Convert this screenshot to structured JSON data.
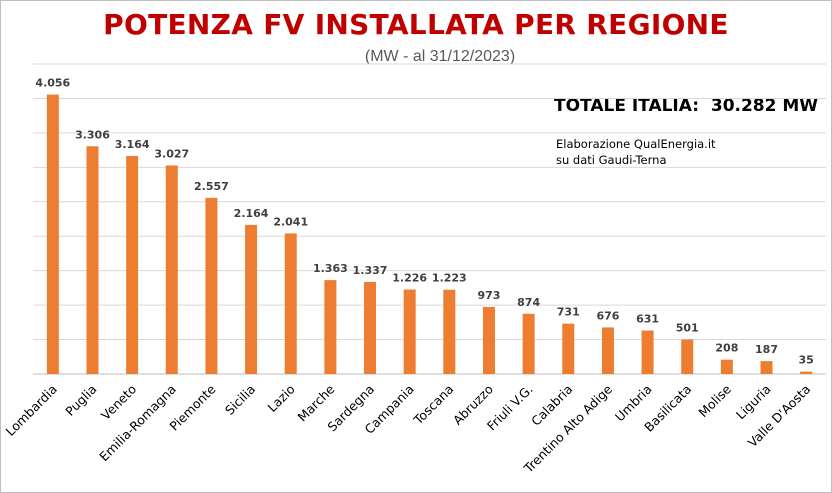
{
  "chart_data": {
    "type": "bar",
    "title": "POTENZA FV INSTALLATA PER REGIONE",
    "subtitle": "(MW - al 31/12/2023)",
    "annotations": {
      "total": "TOTALE ITALIA:  30.282 MW",
      "source_line1": "Elaborazione QualEnergia.it",
      "source_line2": "su dati Gaudi-Terna"
    },
    "categories": [
      "Lombardia",
      "Puglia",
      "Veneto",
      "Emilia-Romagna",
      "Piemonte",
      "Sicilia",
      "Lazio",
      "Marche",
      "Sardegna",
      "Campania",
      "Toscana",
      "Abruzzo",
      "Friuli V.G.",
      "Calabria",
      "Trentino Alto Adige",
      "Umbria",
      "Basilicata",
      "Molise",
      "Liguria",
      "Valle D'Aosta"
    ],
    "values": [
      4056,
      3306,
      3164,
      3027,
      2557,
      2164,
      2041,
      1363,
      1337,
      1226,
      1223,
      973,
      874,
      731,
      676,
      631,
      501,
      208,
      187,
      35
    ],
    "value_labels": [
      "4.056",
      "3.306",
      "3.164",
      "3.027",
      "2.557",
      "2.164",
      "2.041",
      "1.363",
      "1.337",
      "1.226",
      "1.223",
      "973",
      "874",
      "731",
      "676",
      "631",
      "501",
      "208",
      "187",
      "35"
    ],
    "ylim": [
      0,
      4500
    ],
    "y_gridlines": [
      500,
      1000,
      1500,
      2000,
      2500,
      3000,
      3500,
      4000,
      4500
    ],
    "grid": true,
    "xlabel": "",
    "ylabel": "",
    "colors": {
      "bar": "#ed7d31",
      "title": "#c00000"
    }
  }
}
